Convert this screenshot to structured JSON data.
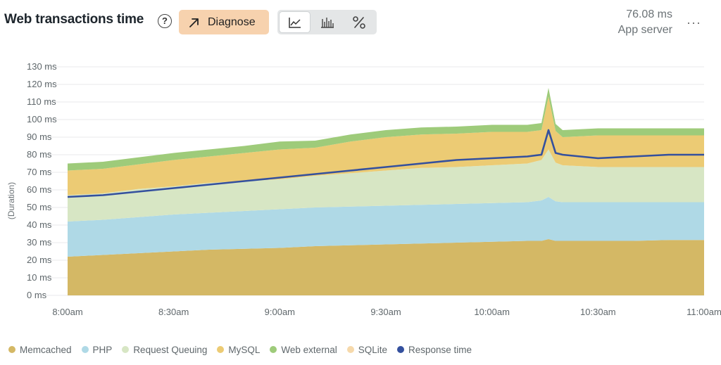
{
  "header": {
    "title": "Web transactions time",
    "help_symbol": "?",
    "diagnose_label": "Diagnose",
    "summary_value": "76.08 ms",
    "summary_label": "App server",
    "more_symbol": "···",
    "view_buttons": [
      {
        "icon": "area-chart-icon",
        "active": true
      },
      {
        "icon": "bar-chart-icon",
        "active": false
      },
      {
        "icon": "percent-icon",
        "active": false
      }
    ]
  },
  "chart_data": {
    "type": "area",
    "stacked": true,
    "title": "Web transactions time",
    "ylabel": "(Duration)",
    "xlabel": "",
    "ylim": [
      0,
      130
    ],
    "y_ticks": [
      {
        "value": 0,
        "label": "0 ms"
      },
      {
        "value": 10,
        "label": "10 ms"
      },
      {
        "value": 20,
        "label": "20 ms"
      },
      {
        "value": 30,
        "label": "30 ms"
      },
      {
        "value": 40,
        "label": "40 ms"
      },
      {
        "value": 50,
        "label": "50 ms"
      },
      {
        "value": 60,
        "label": "60 ms"
      },
      {
        "value": 70,
        "label": "70 ms"
      },
      {
        "value": 80,
        "label": "80 ms"
      },
      {
        "value": 90,
        "label": "90 ms"
      },
      {
        "value": 100,
        "label": "100 ms"
      },
      {
        "value": 110,
        "label": "110 ms"
      },
      {
        "value": 120,
        "label": "120 ms"
      },
      {
        "value": 130,
        "label": "130 ms"
      }
    ],
    "x_ticks": [
      "8:00am",
      "8:30am",
      "9:00am",
      "9:30am",
      "10:00am",
      "10:30am",
      "11:00am"
    ],
    "x": [
      "8:00am",
      "8:10am",
      "8:20am",
      "8:30am",
      "8:40am",
      "8:50am",
      "9:00am",
      "9:10am",
      "9:20am",
      "9:30am",
      "9:40am",
      "9:50am",
      "10:00am",
      "10:10am",
      "10:14am",
      "10:16am",
      "10:18am",
      "10:20am",
      "10:30am",
      "10:40am",
      "10:50am",
      "11:00am"
    ],
    "series": [
      {
        "name": "Memcached",
        "color": "#d4b865",
        "values": [
          22,
          23,
          24,
          25,
          26,
          26.5,
          27,
          28,
          28.5,
          29,
          29.5,
          30,
          30.5,
          31,
          31,
          32,
          31,
          31,
          31,
          31,
          31.5,
          31.5
        ]
      },
      {
        "name": "PHP",
        "color": "#afd9e6",
        "values": [
          20,
          20,
          20.5,
          21,
          21,
          21.5,
          22,
          22,
          22,
          22,
          22,
          22,
          22,
          22,
          23,
          24,
          22.5,
          22,
          22,
          22,
          21.5,
          21.5
        ]
      },
      {
        "name": "Request Queuing",
        "color": "#d7e6c4",
        "values": [
          15,
          15,
          16,
          16,
          17,
          17,
          17,
          18,
          19,
          20,
          21,
          21,
          21.5,
          22,
          23,
          27,
          22,
          21,
          20,
          20,
          20,
          20
        ]
      },
      {
        "name": "MySQL",
        "color": "#eccb74",
        "values": [
          14,
          14,
          14,
          15,
          15,
          16,
          17,
          16,
          18,
          19,
          19,
          19,
          19,
          18,
          17,
          30,
          18,
          16,
          18,
          18,
          18,
          18
        ]
      },
      {
        "name": "Web external",
        "color": "#9ecb7a",
        "values": [
          4,
          4,
          4,
          4,
          4,
          4,
          4.5,
          4,
          4,
          4,
          4,
          4,
          4,
          4,
          4,
          5,
          4,
          4,
          4,
          4,
          4,
          4
        ]
      },
      {
        "name": "SQLite",
        "color": "#f6d9ab",
        "values": [
          0,
          0,
          0,
          0,
          0,
          0,
          0,
          0,
          0,
          0,
          0,
          0,
          0,
          0,
          0,
          0,
          0,
          0,
          0,
          0,
          0,
          0
        ]
      }
    ],
    "line_series": {
      "name": "Response time",
      "color": "#34509e",
      "values": [
        56,
        57,
        59,
        61,
        63,
        65,
        67,
        69,
        71,
        73,
        75,
        77,
        78,
        79,
        80,
        94,
        81,
        80,
        78,
        79,
        80,
        80
      ]
    },
    "legend_position": "bottom",
    "grid": true
  }
}
